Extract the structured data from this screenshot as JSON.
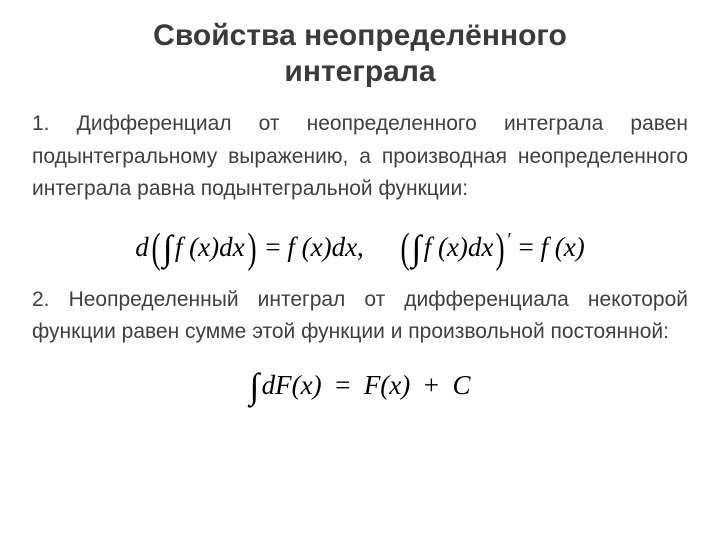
{
  "title_line1": "Свойства неопределённого",
  "title_line2": "интеграла",
  "para1": "1. Дифференциал от неопределенного интеграла равен подынтегральному выражению, а производная неопределенного интеграла равна подынтегральной функции:",
  "para2": "2. Неопределенный интеграл от дифференциала некоторой функции равен сумме этой функции и произвольной постоянной:",
  "formula1": {
    "d": "d",
    "lpar": "(",
    "int": "∫",
    "fx": "f (x)",
    "dx": "dx",
    "rpar": ")",
    "eq": "=",
    "comma": ",",
    "lpar2": "(",
    "rpar2": ")",
    "prime": "′",
    "fx2": "f (x)"
  },
  "formula2": {
    "int": "∫",
    "dFx": "dF(x)",
    "eq": "=",
    "Fx": "F(x)",
    "plus": "+",
    "C": "C"
  },
  "colors": {
    "bg": "#ffffff",
    "heading": "#3b3b3b",
    "body": "#3f3f3f",
    "formula": "#000000"
  }
}
